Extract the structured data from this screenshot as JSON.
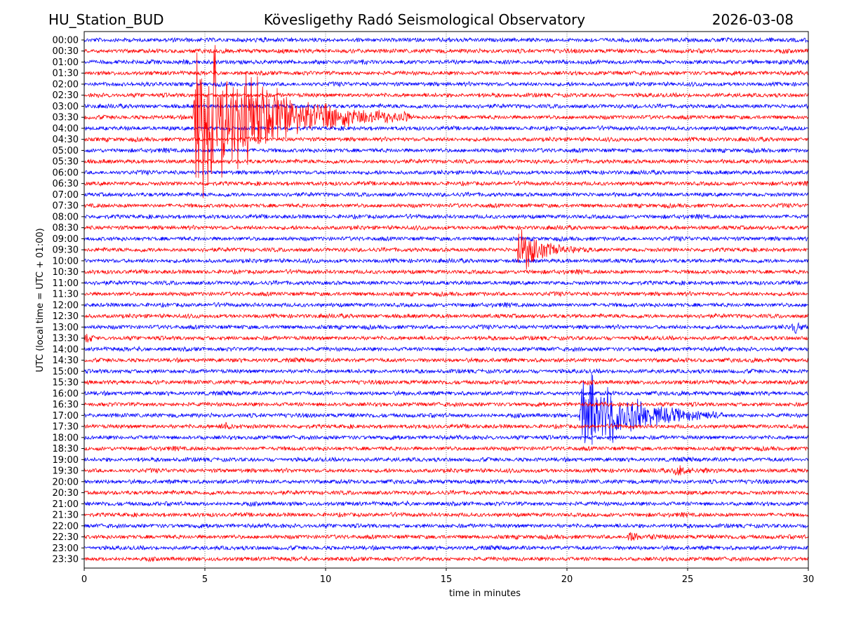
{
  "chart_data": {
    "type": "line",
    "subtype": "helicorder",
    "title_left": "HU_Station_BUD",
    "title": "Kövesligethy Radó Seismological Observatory",
    "title_right": "2026-03-08",
    "xlabel": "time in minutes",
    "ylabel": "UTC (local time = UTC + 01:00)",
    "xlim": [
      0,
      30
    ],
    "xticks": [
      "0",
      "5",
      "10",
      "15",
      "20",
      "25",
      "30"
    ],
    "grid": "vertical dotted at x ticks",
    "rows": [
      "00:00",
      "00:30",
      "01:00",
      "01:30",
      "02:00",
      "02:30",
      "03:00",
      "03:30",
      "04:00",
      "04:30",
      "05:00",
      "05:30",
      "06:00",
      "06:30",
      "07:00",
      "07:30",
      "08:00",
      "08:30",
      "09:00",
      "09:30",
      "10:00",
      "10:30",
      "11:00",
      "11:30",
      "12:00",
      "12:30",
      "13:00",
      "13:30",
      "14:00",
      "14:30",
      "15:00",
      "15:30",
      "16:00",
      "16:30",
      "17:00",
      "17:30",
      "18:00",
      "18:30",
      "19:00",
      "19:30",
      "20:00",
      "20:30",
      "21:00",
      "21:30",
      "22:00",
      "22:30",
      "23:00",
      "23:30"
    ],
    "series_colors": [
      "#0000ff",
      "#ff0000"
    ],
    "events": [
      {
        "row": "03:30",
        "start_min": 4.5,
        "duration_min": 9,
        "peak_amplitude_rows": 9
      },
      {
        "row": "09:30",
        "start_min": 17.9,
        "duration_min": 3,
        "peak_amplitude_rows": 2.5
      },
      {
        "row": "17:00",
        "start_min": 20.5,
        "duration_min": 6,
        "peak_amplitude_rows": 5
      },
      {
        "row": "13:00",
        "start_min": 29.3,
        "duration_min": 0.7,
        "peak_amplitude_rows": 1.2
      },
      {
        "row": "13:30",
        "start_min": 0.0,
        "duration_min": 0.6,
        "peak_amplitude_rows": 0.8
      },
      {
        "row": "17:30",
        "start_min": 5.5,
        "duration_min": 1,
        "peak_amplitude_rows": 0.8
      },
      {
        "row": "19:30",
        "start_min": 24.4,
        "duration_min": 2,
        "peak_amplitude_rows": 0.6
      },
      {
        "row": "22:30",
        "start_min": 22.5,
        "duration_min": 1.5,
        "peak_amplitude_rows": 0.5
      }
    ]
  }
}
